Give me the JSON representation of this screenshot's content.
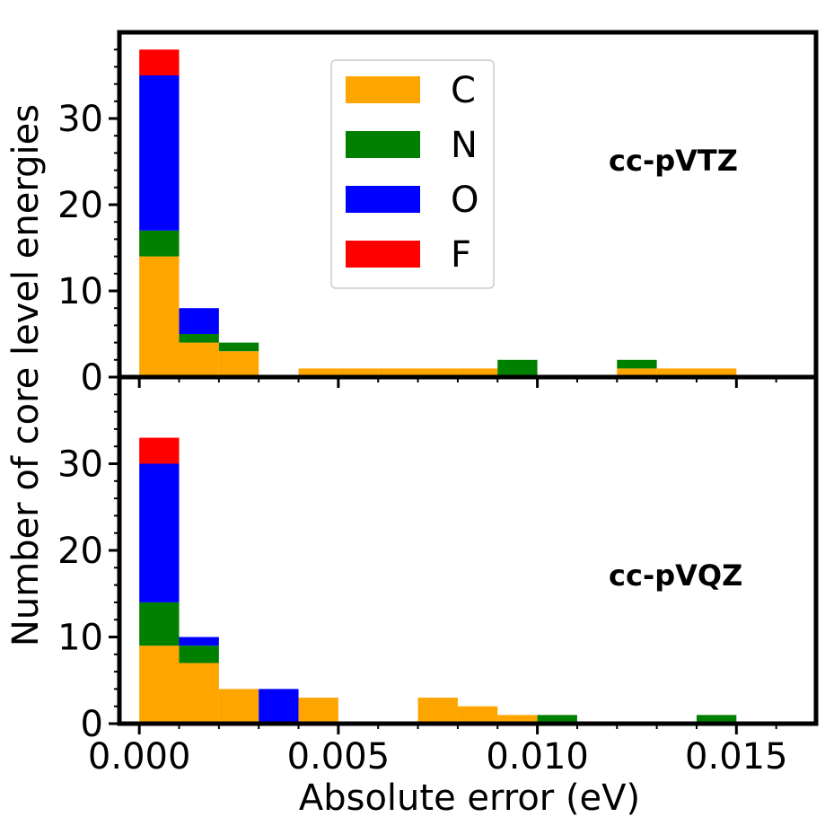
{
  "chart_data": {
    "type": "bar",
    "subtype": "stacked-histogram",
    "shared_x": true,
    "xlabel": "Absolute error (eV)",
    "ylabel": "Number of core level energies",
    "xlim": [
      -0.0005,
      0.017
    ],
    "ylim": [
      0,
      40
    ],
    "bin_width": 0.001,
    "bin_starts": [
      0.0,
      0.001,
      0.002,
      0.003,
      0.004,
      0.005,
      0.006,
      0.007,
      0.008,
      0.009,
      0.01,
      0.011,
      0.012,
      0.013,
      0.014
    ],
    "x_ticks": [
      "0.000",
      "0.005",
      "0.010",
      "0.015"
    ],
    "x_tick_values": [
      0.0,
      0.005,
      0.01,
      0.015
    ],
    "y_ticks": [
      "0",
      "10",
      "20",
      "30"
    ],
    "y_tick_values": [
      0,
      10,
      20,
      30
    ],
    "legend": {
      "position": "upper-center",
      "entries": [
        {
          "label": "C",
          "color": "#ffa500"
        },
        {
          "label": "N",
          "color": "#008000"
        },
        {
          "label": "O",
          "color": "#0000ff"
        },
        {
          "label": "F",
          "color": "#ff0000"
        }
      ]
    },
    "panels": [
      {
        "label": "cc-pVTZ",
        "series": [
          {
            "name": "C",
            "color": "#ffa500",
            "values": [
              14,
              4,
              3,
              0,
              1,
              1,
              1,
              1,
              1,
              0,
              0,
              0,
              1,
              1,
              1
            ]
          },
          {
            "name": "N",
            "color": "#008000",
            "values": [
              3,
              1,
              1,
              0,
              0,
              0,
              0,
              0,
              0,
              2,
              0,
              0,
              1,
              0,
              0
            ]
          },
          {
            "name": "O",
            "color": "#0000ff",
            "values": [
              18,
              3,
              0,
              0,
              0,
              0,
              0,
              0,
              0,
              0,
              0,
              0,
              0,
              0,
              0
            ]
          },
          {
            "name": "F",
            "color": "#ff0000",
            "values": [
              3,
              0,
              0,
              0,
              0,
              0,
              0,
              0,
              0,
              0,
              0,
              0,
              0,
              0,
              0
            ]
          }
        ]
      },
      {
        "label": "cc-pVQZ",
        "series": [
          {
            "name": "C",
            "color": "#ffa500",
            "values": [
              9,
              7,
              4,
              0,
              3,
              0,
              0,
              3,
              2,
              1,
              0,
              0,
              0,
              0,
              0
            ]
          },
          {
            "name": "N",
            "color": "#008000",
            "values": [
              5,
              2,
              0,
              0,
              0,
              0,
              0,
              0,
              0,
              0,
              1,
              0,
              0,
              0,
              1
            ]
          },
          {
            "name": "O",
            "color": "#0000ff",
            "values": [
              16,
              1,
              0,
              4,
              0,
              0,
              0,
              0,
              0,
              0,
              0,
              0,
              0,
              0,
              0
            ]
          },
          {
            "name": "F",
            "color": "#ff0000",
            "values": [
              3,
              0,
              0,
              0,
              0,
              0,
              0,
              0,
              0,
              0,
              0,
              0,
              0,
              0,
              0
            ]
          }
        ]
      }
    ]
  }
}
